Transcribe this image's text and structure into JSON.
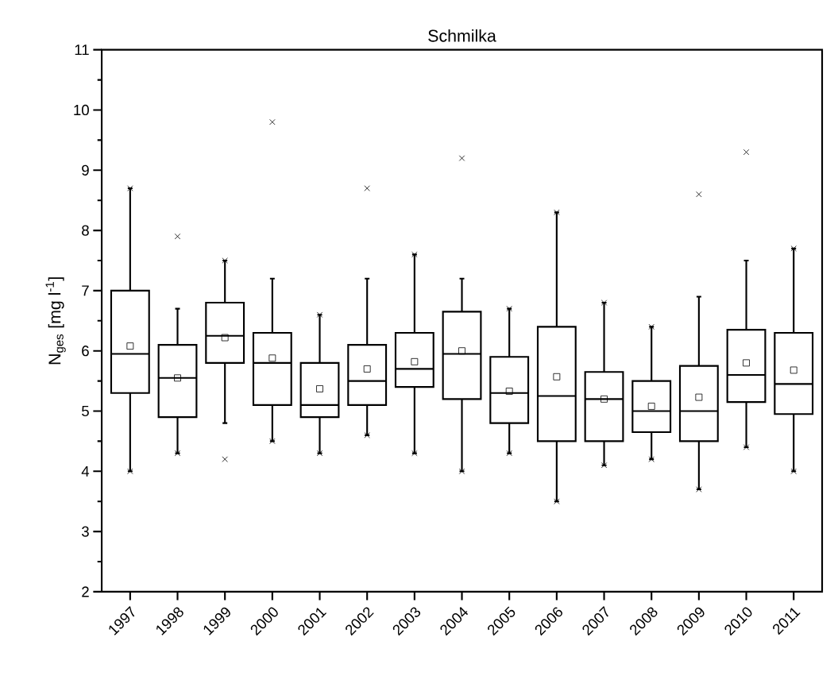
{
  "chart_data": {
    "type": "box",
    "title": "Schmilka",
    "ylabel": "N$_{ges}$ [mg l$^{-1}$]",
    "color": "#000000",
    "marker": "cross",
    "categories": [
      "1997",
      "1998",
      "1999",
      "2000",
      "2001",
      "2002",
      "2003",
      "2004",
      "2005",
      "2006",
      "2007",
      "2008",
      "2009",
      "2010",
      "2011"
    ],
    "boxes": [
      {
        "low": 4.0,
        "q1": 5.3,
        "median": 5.95,
        "q3": 7.0,
        "high": 8.7,
        "mean": 6.08,
        "outliers": [
          4.0,
          8.7
        ]
      },
      {
        "low": 4.3,
        "q1": 4.9,
        "median": 5.55,
        "q3": 6.1,
        "high": 6.7,
        "mean": 5.55,
        "outliers": [
          4.3,
          7.9
        ]
      },
      {
        "low": 4.8,
        "q1": 5.8,
        "median": 6.25,
        "q3": 6.8,
        "high": 7.5,
        "mean": 6.22,
        "outliers": [
          4.2,
          7.5
        ]
      },
      {
        "low": 4.5,
        "q1": 5.1,
        "median": 5.8,
        "q3": 6.3,
        "high": 7.2,
        "mean": 5.88,
        "outliers": [
          4.5,
          9.8
        ]
      },
      {
        "low": 4.3,
        "q1": 4.9,
        "median": 5.1,
        "q3": 5.8,
        "high": 6.6,
        "mean": 5.37,
        "outliers": [
          4.3,
          6.6
        ]
      },
      {
        "low": 4.6,
        "q1": 5.1,
        "median": 5.5,
        "q3": 6.1,
        "high": 7.2,
        "mean": 5.7,
        "outliers": [
          4.6,
          8.7
        ]
      },
      {
        "low": 4.3,
        "q1": 5.4,
        "median": 5.7,
        "q3": 6.3,
        "high": 7.6,
        "mean": 5.82,
        "outliers": [
          4.3,
          7.6
        ]
      },
      {
        "low": 4.0,
        "q1": 5.2,
        "median": 5.95,
        "q3": 6.65,
        "high": 7.2,
        "mean": 6.0,
        "outliers": [
          4.0,
          9.2
        ]
      },
      {
        "low": 4.3,
        "q1": 4.8,
        "median": 5.3,
        "q3": 5.9,
        "high": 6.7,
        "mean": 5.33,
        "outliers": [
          4.3,
          6.7
        ]
      },
      {
        "low": 3.5,
        "q1": 4.5,
        "median": 5.25,
        "q3": 6.4,
        "high": 8.3,
        "mean": 5.57,
        "outliers": [
          3.5,
          8.3
        ]
      },
      {
        "low": 4.1,
        "q1": 4.5,
        "median": 5.2,
        "q3": 5.65,
        "high": 6.8,
        "mean": 5.2,
        "outliers": [
          4.1,
          6.8
        ]
      },
      {
        "low": 4.2,
        "q1": 4.65,
        "median": 5.0,
        "q3": 5.5,
        "high": 6.4,
        "mean": 5.08,
        "outliers": [
          4.2,
          6.4
        ]
      },
      {
        "low": 3.7,
        "q1": 4.5,
        "median": 5.0,
        "q3": 5.75,
        "high": 6.9,
        "mean": 5.23,
        "outliers": [
          3.7,
          8.6
        ]
      },
      {
        "low": 4.4,
        "q1": 5.15,
        "median": 5.6,
        "q3": 6.35,
        "high": 7.5,
        "mean": 5.8,
        "outliers": [
          4.4,
          9.3
        ]
      },
      {
        "low": 4.0,
        "q1": 4.95,
        "median": 5.45,
        "q3": 6.3,
        "high": 7.7,
        "mean": 5.68,
        "outliers": [
          4.0,
          7.7
        ]
      }
    ],
    "ylim": [
      2,
      11
    ],
    "yticks": [
      2,
      3,
      4,
      5,
      6,
      7,
      8,
      9,
      10,
      11
    ]
  }
}
